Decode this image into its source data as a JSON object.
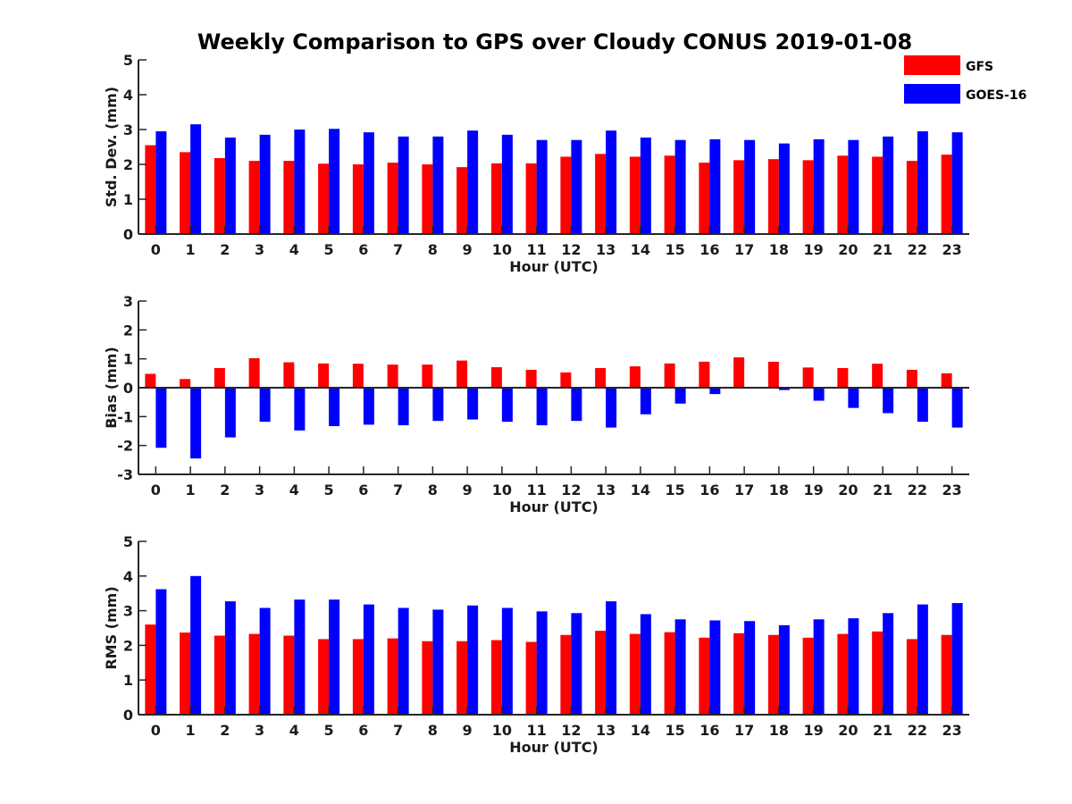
{
  "title": "Weekly Comparison to GPS over Cloudy CONUS 2019-01-08",
  "legend": [
    {
      "name": "GFS",
      "color": "#ff0000"
    },
    {
      "name": "GOES-16",
      "color": "#0000ff"
    }
  ],
  "chart_data": [
    {
      "type": "bar",
      "xlabel": "Hour (UTC)",
      "ylabel": "Std. Dev. (mm)",
      "ylim": [
        0,
        5
      ],
      "yticks": [
        0,
        1,
        2,
        3,
        4,
        5
      ],
      "categories": [
        "0",
        "1",
        "2",
        "3",
        "4",
        "5",
        "6",
        "7",
        "8",
        "9",
        "10",
        "11",
        "12",
        "13",
        "14",
        "15",
        "16",
        "17",
        "18",
        "19",
        "20",
        "21",
        "22",
        "23"
      ],
      "series": [
        {
          "name": "GFS",
          "color": "#ff0000",
          "values": [
            2.55,
            2.35,
            2.18,
            2.1,
            2.1,
            2.02,
            2.0,
            2.05,
            2.0,
            1.92,
            2.03,
            2.03,
            2.22,
            2.3,
            2.22,
            2.25,
            2.05,
            2.12,
            2.15,
            2.12,
            2.25,
            2.22,
            2.1,
            2.28
          ]
        },
        {
          "name": "GOES-16",
          "color": "#0000ff",
          "values": [
            2.95,
            3.15,
            2.77,
            2.85,
            3.0,
            3.02,
            2.92,
            2.8,
            2.8,
            2.97,
            2.85,
            2.7,
            2.7,
            2.97,
            2.77,
            2.7,
            2.72,
            2.7,
            2.6,
            2.72,
            2.7,
            2.8,
            2.95,
            2.92
          ]
        }
      ]
    },
    {
      "type": "bar",
      "xlabel": "Hour (UTC)",
      "ylabel": "Bias (mm)",
      "ylim": [
        -3,
        3
      ],
      "yticks": [
        -3,
        -2,
        -1,
        0,
        1,
        2,
        3
      ],
      "zero_line": true,
      "categories": [
        "0",
        "1",
        "2",
        "3",
        "4",
        "5",
        "6",
        "7",
        "8",
        "9",
        "10",
        "11",
        "12",
        "13",
        "14",
        "15",
        "16",
        "17",
        "18",
        "19",
        "20",
        "21",
        "22",
        "23"
      ],
      "series": [
        {
          "name": "GFS",
          "color": "#ff0000",
          "values": [
            0.48,
            0.3,
            0.68,
            1.02,
            0.88,
            0.84,
            0.83,
            0.8,
            0.8,
            0.94,
            0.71,
            0.62,
            0.53,
            0.68,
            0.74,
            0.84,
            0.9,
            1.05,
            0.9,
            0.7,
            0.68,
            0.83,
            0.62,
            0.5
          ]
        },
        {
          "name": "GOES-16",
          "color": "#0000ff",
          "values": [
            -2.08,
            -2.45,
            -1.72,
            -1.18,
            -1.48,
            -1.33,
            -1.28,
            -1.3,
            -1.15,
            -1.1,
            -1.18,
            -1.3,
            -1.15,
            -1.38,
            -0.92,
            -0.55,
            -0.22,
            0.03,
            -0.08,
            -0.45,
            -0.7,
            -0.88,
            -1.18,
            -1.38
          ]
        }
      ]
    },
    {
      "type": "bar",
      "xlabel": "Hour (UTC)",
      "ylabel": "RMS (mm)",
      "ylim": [
        0,
        5
      ],
      "yticks": [
        0,
        1,
        2,
        3,
        4,
        5
      ],
      "categories": [
        "0",
        "1",
        "2",
        "3",
        "4",
        "5",
        "6",
        "7",
        "8",
        "9",
        "10",
        "11",
        "12",
        "13",
        "14",
        "15",
        "16",
        "17",
        "18",
        "19",
        "20",
        "21",
        "22",
        "23"
      ],
      "series": [
        {
          "name": "GFS",
          "color": "#ff0000",
          "values": [
            2.6,
            2.37,
            2.28,
            2.33,
            2.28,
            2.18,
            2.18,
            2.2,
            2.12,
            2.12,
            2.15,
            2.1,
            2.3,
            2.42,
            2.33,
            2.38,
            2.22,
            2.35,
            2.3,
            2.22,
            2.33,
            2.4,
            2.18,
            2.3
          ]
        },
        {
          "name": "GOES-16",
          "color": "#0000ff",
          "values": [
            3.62,
            4.0,
            3.27,
            3.08,
            3.32,
            3.32,
            3.18,
            3.08,
            3.03,
            3.15,
            3.08,
            2.98,
            2.93,
            3.27,
            2.9,
            2.75,
            2.72,
            2.7,
            2.58,
            2.75,
            2.78,
            2.93,
            3.18,
            3.22
          ]
        }
      ]
    }
  ]
}
